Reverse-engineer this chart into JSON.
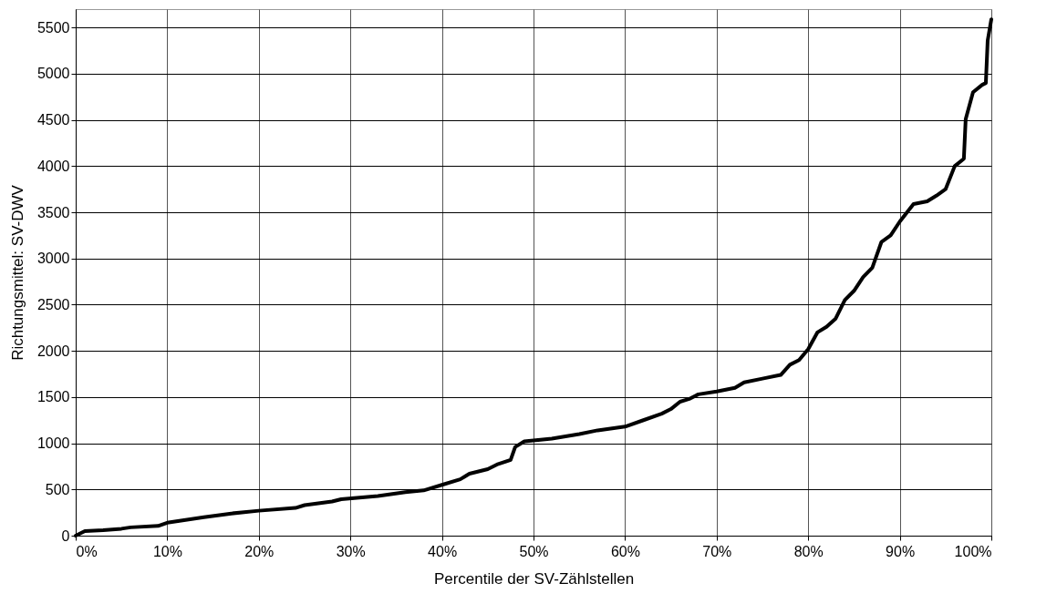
{
  "chart_data": {
    "type": "line",
    "xlabel": "Percentile der SV-Zählstellen",
    "ylabel": "Richtungsmittel: SV-DWV",
    "x": [
      0,
      1,
      3,
      5,
      6,
      9,
      10,
      14,
      17,
      20,
      24,
      25,
      28,
      29,
      33,
      36,
      38,
      40,
      42,
      43,
      45,
      46,
      47.5,
      48,
      49,
      52,
      55,
      57,
      60,
      62,
      64,
      65,
      66,
      67,
      68,
      70,
      72,
      73,
      75,
      77,
      78,
      79,
      80,
      81,
      82,
      83,
      84,
      85,
      86,
      87,
      88,
      89,
      90,
      91.5,
      92,
      93,
      94,
      95,
      96,
      97,
      97.2,
      98,
      99,
      99.4,
      99.6,
      100
    ],
    "series": [
      {
        "color": "#000000",
        "values": [
          0,
          50,
          60,
          75,
          90,
          105,
          140,
          200,
          240,
          270,
          300,
          330,
          370,
          395,
          430,
          470,
          490,
          550,
          610,
          670,
          720,
          770,
          820,
          960,
          1020,
          1050,
          1100,
          1140,
          1180,
          1250,
          1320,
          1370,
          1450,
          1480,
          1530,
          1560,
          1600,
          1660,
          1700,
          1740,
          1850,
          1900,
          2020,
          2200,
          2260,
          2350,
          2550,
          2650,
          2800,
          2900,
          3180,
          3250,
          3400,
          3590,
          3600,
          3620,
          3680,
          3750,
          4000,
          4080,
          4510,
          4800,
          4880,
          4900,
          5360,
          5590
        ]
      }
    ],
    "xlim": [
      0,
      100
    ],
    "xticks": [
      {
        "value": 0,
        "label": "0%"
      },
      {
        "value": 10,
        "label": "10%"
      },
      {
        "value": 20,
        "label": "20%"
      },
      {
        "value": 30,
        "label": "30%"
      },
      {
        "value": 40,
        "label": "40%"
      },
      {
        "value": 50,
        "label": "50%"
      },
      {
        "value": 60,
        "label": "60%"
      },
      {
        "value": 70,
        "label": "70%"
      },
      {
        "value": 80,
        "label": "80%"
      },
      {
        "value": 90,
        "label": "90%"
      },
      {
        "value": 100,
        "label": "100%"
      }
    ],
    "ylim": [
      0,
      5700
    ],
    "yticks": [
      0,
      500,
      1000,
      1500,
      2000,
      2500,
      3000,
      3500,
      4000,
      4500,
      5000,
      5500
    ],
    "grid": true,
    "marker": "none",
    "line_style": "solid"
  }
}
